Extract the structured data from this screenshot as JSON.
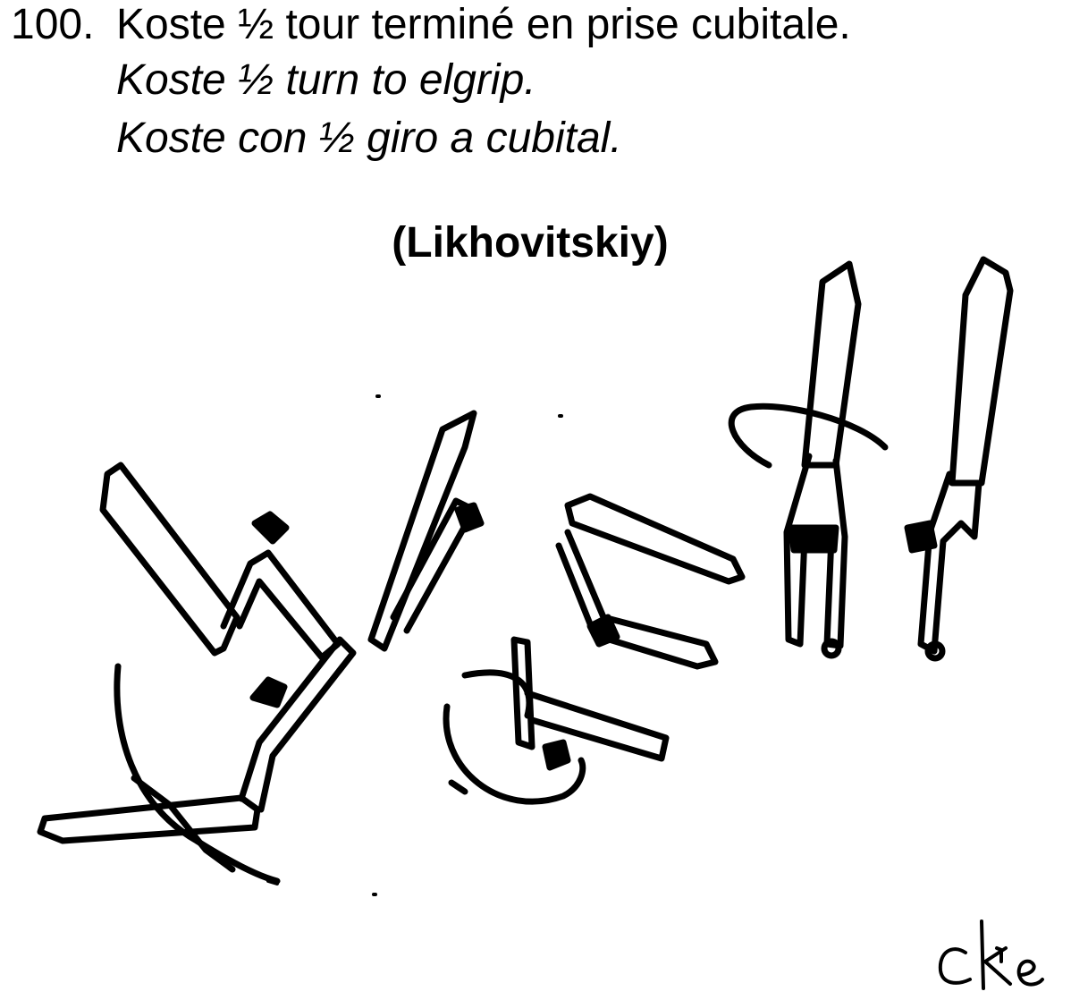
{
  "element": {
    "number": "100.",
    "title_fr": "Koste ½ tour terminé en prise cubitale.",
    "title_en": "Koste ½ turn to elgrip.",
    "title_es": "Koste con ½ giro a cubital.",
    "author": "(Likhovitskiy)"
  },
  "illustration": {
    "subject": "gymnast-sequence-sketch",
    "signature": "cke",
    "ink_color": "#000000",
    "paper_color": "#ffffff"
  }
}
